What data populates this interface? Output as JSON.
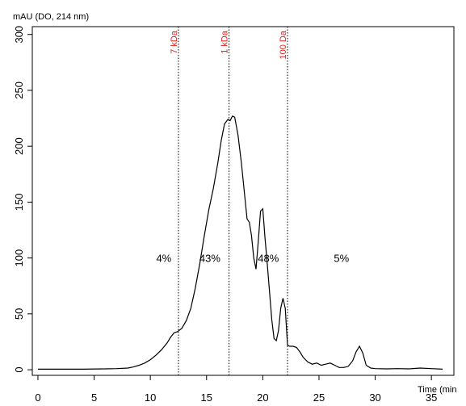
{
  "chart_data": {
    "type": "line",
    "ylabel": "mAU (DO, 214 nm)",
    "xlabel": "Time (min",
    "xlim": [
      -0.5,
      37
    ],
    "ylim": [
      -5,
      307
    ],
    "x_ticks": [
      0,
      5,
      10,
      15,
      20,
      25,
      30,
      35
    ],
    "y_ticks": [
      0,
      50,
      100,
      150,
      200,
      250,
      300
    ],
    "grid": false,
    "line_color": "#000000",
    "marker_color": "#e0201b",
    "markers": [
      {
        "x": 12.5,
        "label": "7 kDa"
      },
      {
        "x": 17.0,
        "label": "1 kDa"
      },
      {
        "x": 22.2,
        "label": "100 Da"
      }
    ],
    "percent_labels": [
      {
        "x": 11.2,
        "y": 100,
        "label": "4%"
      },
      {
        "x": 15.3,
        "y": 100,
        "label": "43%"
      },
      {
        "x": 20.5,
        "y": 100,
        "label": "48%"
      },
      {
        "x": 27.0,
        "y": 100,
        "label": "5%"
      }
    ],
    "series": [
      {
        "x": [
          0,
          2,
          4,
          6,
          7,
          8,
          8.5,
          9,
          9.5,
          10,
          10.5,
          11,
          11.5,
          11.8,
          12.1,
          12.4,
          12.8,
          13.2,
          13.6,
          14,
          14.4,
          14.8,
          15.2,
          15.6,
          16,
          16.3,
          16.6,
          16.9,
          17.1,
          17.3,
          17.5,
          17.8,
          18.1,
          18.4,
          18.6,
          18.8,
          19.0,
          19.2,
          19.4,
          19.6,
          19.8,
          20.0,
          20.2,
          20.4,
          20.6,
          20.8,
          21.0,
          21.2,
          21.4,
          21.6,
          21.8,
          22.0,
          22.2,
          22.4,
          22.7,
          23.0,
          23.3,
          23.6,
          24.0,
          24.4,
          24.8,
          25.2,
          25.6,
          26.0,
          26.4,
          26.8,
          27.2,
          27.6,
          28.0,
          28.3,
          28.6,
          28.9,
          29.2,
          29.6,
          30.0,
          31,
          32,
          33,
          34,
          35,
          36
        ],
        "y": [
          0.5,
          0.5,
          0.5,
          0.8,
          1.0,
          1.5,
          2.5,
          4,
          6,
          9,
          13,
          18,
          24,
          29,
          33,
          34,
          37,
          44,
          55,
          73,
          95,
          120,
          143,
          162,
          185,
          205,
          220,
          224,
          223,
          227,
          226,
          210,
          185,
          155,
          135,
          132,
          120,
          100,
          90,
          115,
          142,
          144,
          118,
          95,
          70,
          45,
          28,
          26,
          35,
          55,
          64,
          55,
          22,
          21,
          21,
          20,
          16,
          11,
          7,
          5,
          6,
          4,
          5,
          6,
          4,
          2,
          2,
          3,
          8,
          16,
          21,
          15,
          4,
          1.5,
          1,
          0.8,
          1,
          0.8,
          1.5,
          1,
          0.5
        ]
      }
    ]
  }
}
